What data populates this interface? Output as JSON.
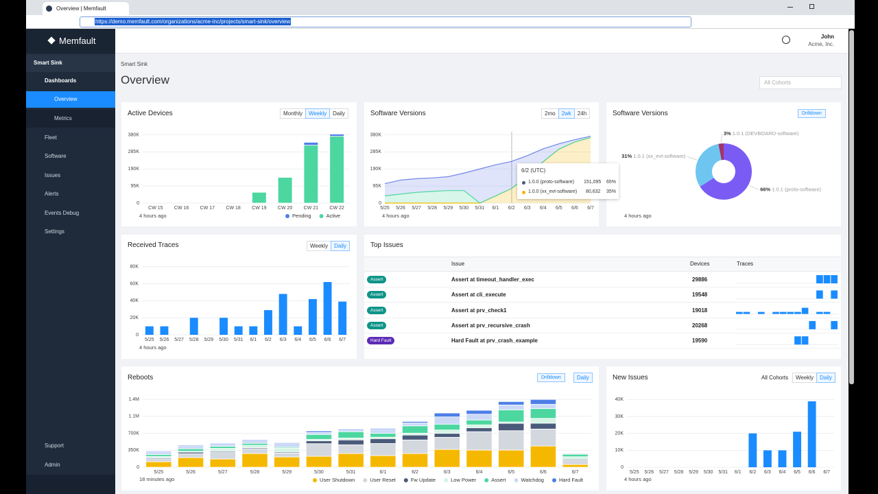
{
  "browser": {
    "tab_title": "Overview | Memfault",
    "url": "https://demo.memfault.com/organizations/acme-inc/projects/smart-sink/overview"
  },
  "sidebar": {
    "brand": "Memfault",
    "project": "Smart Sink",
    "nav": [
      "Dashboards",
      "Overview",
      "Metrics",
      "Fleet",
      "Software",
      "Issues",
      "Alerts",
      "Events Debug",
      "Settings"
    ],
    "footer_nav": [
      "Support",
      "Admin"
    ]
  },
  "header": {
    "user": "John",
    "org": "Acme, Inc.",
    "breadcrumb": "Smart Sink",
    "title": "Overview",
    "cohort_select": "All Cohorts"
  },
  "panels": {
    "active_devices": {
      "title": "Active Devices",
      "toggles": [
        "Monthly",
        "Weekly",
        "Daily"
      ],
      "updated": "4 hours ago",
      "chart": {
        "type": "bar",
        "categories": [
          "CW 15",
          "CW 16",
          "CW 17",
          "CW 18",
          "CW 19",
          "CW 20",
          "CW 21",
          "CW 22"
        ],
        "series": [
          {
            "name": "Pending",
            "color": "#4e7fe8",
            "values": [
              0,
              0,
              0,
              0,
              0,
              0,
              16000,
              12000
            ]
          },
          {
            "name": "Active",
            "color": "#4cd7a0",
            "values": [
              0,
              0,
              0,
              0,
              60000,
              143000,
              322000,
              372000
            ]
          }
        ],
        "ylim": [
          0,
          420000
        ],
        "yticks": [
          0,
          {
            "value": 95000,
            "label": "95K"
          },
          {
            "value": 190000,
            "label": "190K"
          },
          {
            "value": 285000,
            "label": "285K"
          },
          {
            "value": 380000,
            "label": "380K"
          }
        ],
        "grid": true
      }
    },
    "software_versions": {
      "title": "Software Versions",
      "toggles": [
        "2mo",
        "2wk",
        "24h"
      ],
      "updated": "4 hours ago",
      "tooltip": {
        "title": "6/2 (UTC)",
        "rows": [
          {
            "value": "151,095",
            "share": "65%"
          },
          {
            "value": "80,632",
            "share": "35%"
          }
        ]
      },
      "chart": {
        "type": "area",
        "categories": [
          "5/25",
          "5/26",
          "5/27",
          "5/28",
          "5/29",
          "5/30",
          "5/31",
          "6/1",
          "6/2",
          "6/3",
          "6/4",
          "6/5",
          "6/6",
          "6/7"
        ],
        "series": [
          {
            "name": "1.0.0 (xx_evt-software)",
            "color": "#f5b800",
            "values": [
              0,
              0,
              0,
              0,
              0,
              0,
              0,
              40000,
              80632,
              150000,
              230000,
              300000,
              340000,
              365000
            ]
          },
          {
            "color": "#4cd7a0",
            "values": [
              40000,
              50000,
              60000,
              65000,
              70000,
              70000,
              0,
              0,
              0,
              0,
              0,
              0,
              0,
              0
            ]
          },
          {
            "name": "1.0.0 (proto-software)",
            "color": "#6f86e8",
            "values": [
              68000,
              78000,
              76000,
              75000,
              77000,
              97000,
              190000,
              173000,
              151095,
              114000,
              72000,
              30000,
              13000,
              7000
            ]
          }
        ],
        "ylim": [
          0,
          420000
        ],
        "yticks": [
          0,
          {
            "value": 95000,
            "label": "95K"
          },
          {
            "value": 190000,
            "label": "190K"
          },
          {
            "value": 285000,
            "label": "285K"
          },
          {
            "value": 380000,
            "label": "380K"
          }
        ],
        "grid": true
      }
    },
    "software_share": {
      "title": "Software Versions",
      "drilldown": "Drilldown",
      "updated": "4 hours ago",
      "chart": {
        "type": "pie",
        "donut": true,
        "values": [
          66,
          31,
          3
        ],
        "value_labels": [
          "66%",
          "31%",
          "3%"
        ],
        "labels": [
          "1.0.1 (proto-software)",
          "1.0.1 (xx_evt-software)",
          "1.0.1 (DEVBOARD-software)"
        ],
        "colors": [
          "#7a5cf5",
          "#6ec6f0",
          "#a3346a"
        ]
      }
    },
    "received_traces": {
      "title": "Received Traces",
      "toggles": [
        "Weekly",
        "Daily"
      ],
      "updated": "4 hours ago",
      "chart": {
        "type": "bar",
        "categories": [
          "5/25",
          "5/26",
          "5/27",
          "5/28",
          "5/29",
          "5/30",
          "5/31",
          "6/1",
          "6/2",
          "6/3",
          "6/4",
          "6/5",
          "6/6",
          "6/7"
        ],
        "values": [
          10000,
          10000,
          0,
          20000,
          0,
          20000,
          10000,
          10000,
          29000,
          48000,
          10000,
          42000,
          62000,
          39000
        ],
        "color": "#1a8cff",
        "ylim": [
          0,
          87000
        ],
        "yticks": [
          0,
          {
            "value": 20000,
            "label": "20K"
          },
          {
            "value": 40000,
            "label": "40K"
          },
          {
            "value": 60000,
            "label": "60K"
          },
          {
            "value": 80000,
            "label": "80K"
          }
        ],
        "grid": true
      }
    },
    "top_issues": {
      "title": "Top Issues",
      "columns": [
        "Issue",
        "Devices",
        "Traces"
      ],
      "trace_color": "#1a8cff",
      "rows": [
        {
          "type": "Assert",
          "badge_color": "#0e9488",
          "issue": "Assert at timeout_handler_exec",
          "devices": 29886,
          "traces": [
            0,
            0,
            0,
            0,
            0,
            0,
            0,
            0,
            0,
            0,
            0,
            4,
            4,
            4
          ]
        },
        {
          "type": "Assert",
          "badge_color": "#0e9488",
          "issue": "Assert at cli_execute",
          "devices": 19548,
          "traces": [
            0,
            0,
            0,
            0,
            0,
            0,
            0,
            0,
            0,
            0,
            0,
            4,
            0,
            4
          ]
        },
        {
          "type": "Assert",
          "badge_color": "#0e9488",
          "issue": "Assert at prv_check1",
          "devices": 19018,
          "traces": [
            1,
            1,
            0,
            1,
            0,
            1,
            1,
            1,
            1,
            3,
            0,
            1,
            1,
            0
          ]
        },
        {
          "type": "Assert",
          "badge_color": "#0e9488",
          "issue": "Assert at prv_recursive_crash",
          "devices": 20268,
          "traces": [
            0,
            0,
            0,
            0,
            0,
            0,
            0,
            0,
            0,
            0,
            4,
            0,
            0,
            4
          ]
        },
        {
          "type": "Hard Fault",
          "badge_color": "#5b2bb5",
          "issue": "Hard Fault at prv_crash_example",
          "devices": 19590,
          "traces": [
            0,
            0,
            0,
            0,
            0,
            0,
            0,
            0,
            4,
            4,
            0,
            0,
            0,
            0
          ]
        }
      ]
    },
    "reboots": {
      "title": "Reboots",
      "drilldown": "Drilldown",
      "toggles": [
        "Daily"
      ],
      "updated": "18 minutes ago",
      "chart": {
        "type": "bar",
        "categories": [
          "5/25",
          "5/26",
          "5/27",
          "5/28",
          "5/29",
          "5/30",
          "5/31",
          "6/1",
          "6/2",
          "6/3",
          "6/4",
          "6/5",
          "6/6",
          "6/7"
        ],
        "series": [
          {
            "name": "User Shutdown",
            "color": "#f5b800",
            "values": [
              113000,
              200000,
              170000,
              283000,
              212000,
              226000,
              283000,
              240000,
              283000,
              368000,
              354000,
              354000,
              438000,
              57000
            ]
          },
          {
            "name": "User Reset",
            "color": "#d3d7de",
            "values": [
              60000,
              80000,
              140000,
              100000,
              80000,
              260000,
              180000,
              250000,
              280000,
              250000,
              380000,
              400000,
              350000,
              80000
            ]
          },
          {
            "name": "Fw Update",
            "color": "#4a5a7a",
            "values": [
              20000,
              30000,
              20000,
              20000,
              20000,
              60000,
              100000,
              100000,
              100000,
              80000,
              80000,
              150000,
              120000,
              20000
            ]
          },
          {
            "name": "Low Power",
            "color": "#d4f3e4",
            "values": [
              30000,
              20000,
              60000,
              50000,
              80000,
              30000,
              40000,
              30000,
              40000,
              70000,
              60000,
              30000,
              100000,
              60000
            ]
          },
          {
            "name": "Assert",
            "color": "#4cd7a0",
            "values": [
              40000,
              50000,
              40000,
              40000,
              20000,
              100000,
              130000,
              80000,
              150000,
              120000,
              100000,
              250000,
              200000,
              50000
            ]
          },
          {
            "name": "Watchdog",
            "color": "#cbd9f7",
            "values": [
              40000,
              50000,
              40000,
              50000,
              100000,
              40000,
              30000,
              80000,
              60000,
              150000,
              120000,
              100000,
              90000,
              20000
            ]
          },
          {
            "name": "Hard Fault",
            "color": "#4e7fe8",
            "values": [
              20000,
              20000,
              20000,
              20000,
              10000,
              30000,
              20000,
              20000,
              30000,
              80000,
              80000,
              70000,
              100000,
              10000
            ]
          }
        ],
        "ylim": [
          0,
          1500000
        ],
        "yticks": [
          0,
          {
            "value": 350000,
            "label": "350K"
          },
          {
            "value": 700000,
            "label": "700K"
          },
          {
            "value": 1050000,
            "label": "1.1M"
          },
          {
            "value": 1400000,
            "label": "1.4M"
          }
        ],
        "grid": true
      }
    },
    "new_issues": {
      "title": "New Issues",
      "cohort": "All Cohorts",
      "toggles": [
        "Weekly",
        "Daily"
      ],
      "updated": "4 hours ago",
      "chart": {
        "type": "bar",
        "categories": [
          "5/25",
          "5/26",
          "5/27",
          "5/28",
          "5/29",
          "5/30",
          "5/31",
          "6/1",
          "6/2",
          "6/3",
          "6/4",
          "6/5",
          "6/6",
          "6/7"
        ],
        "values": [
          0,
          0,
          0,
          0,
          0,
          0,
          0,
          0,
          20000,
          10000,
          10000,
          21000,
          39000,
          0
        ],
        "color": "#1a8cff",
        "ylim": [
          0,
          43000
        ],
        "yticks": [
          0,
          {
            "value": 10000,
            "label": "10K"
          },
          {
            "value": 20000,
            "label": "20K"
          },
          {
            "value": 30000,
            "label": "30K"
          },
          {
            "value": 40000,
            "label": "40K"
          }
        ],
        "grid": true
      }
    }
  }
}
